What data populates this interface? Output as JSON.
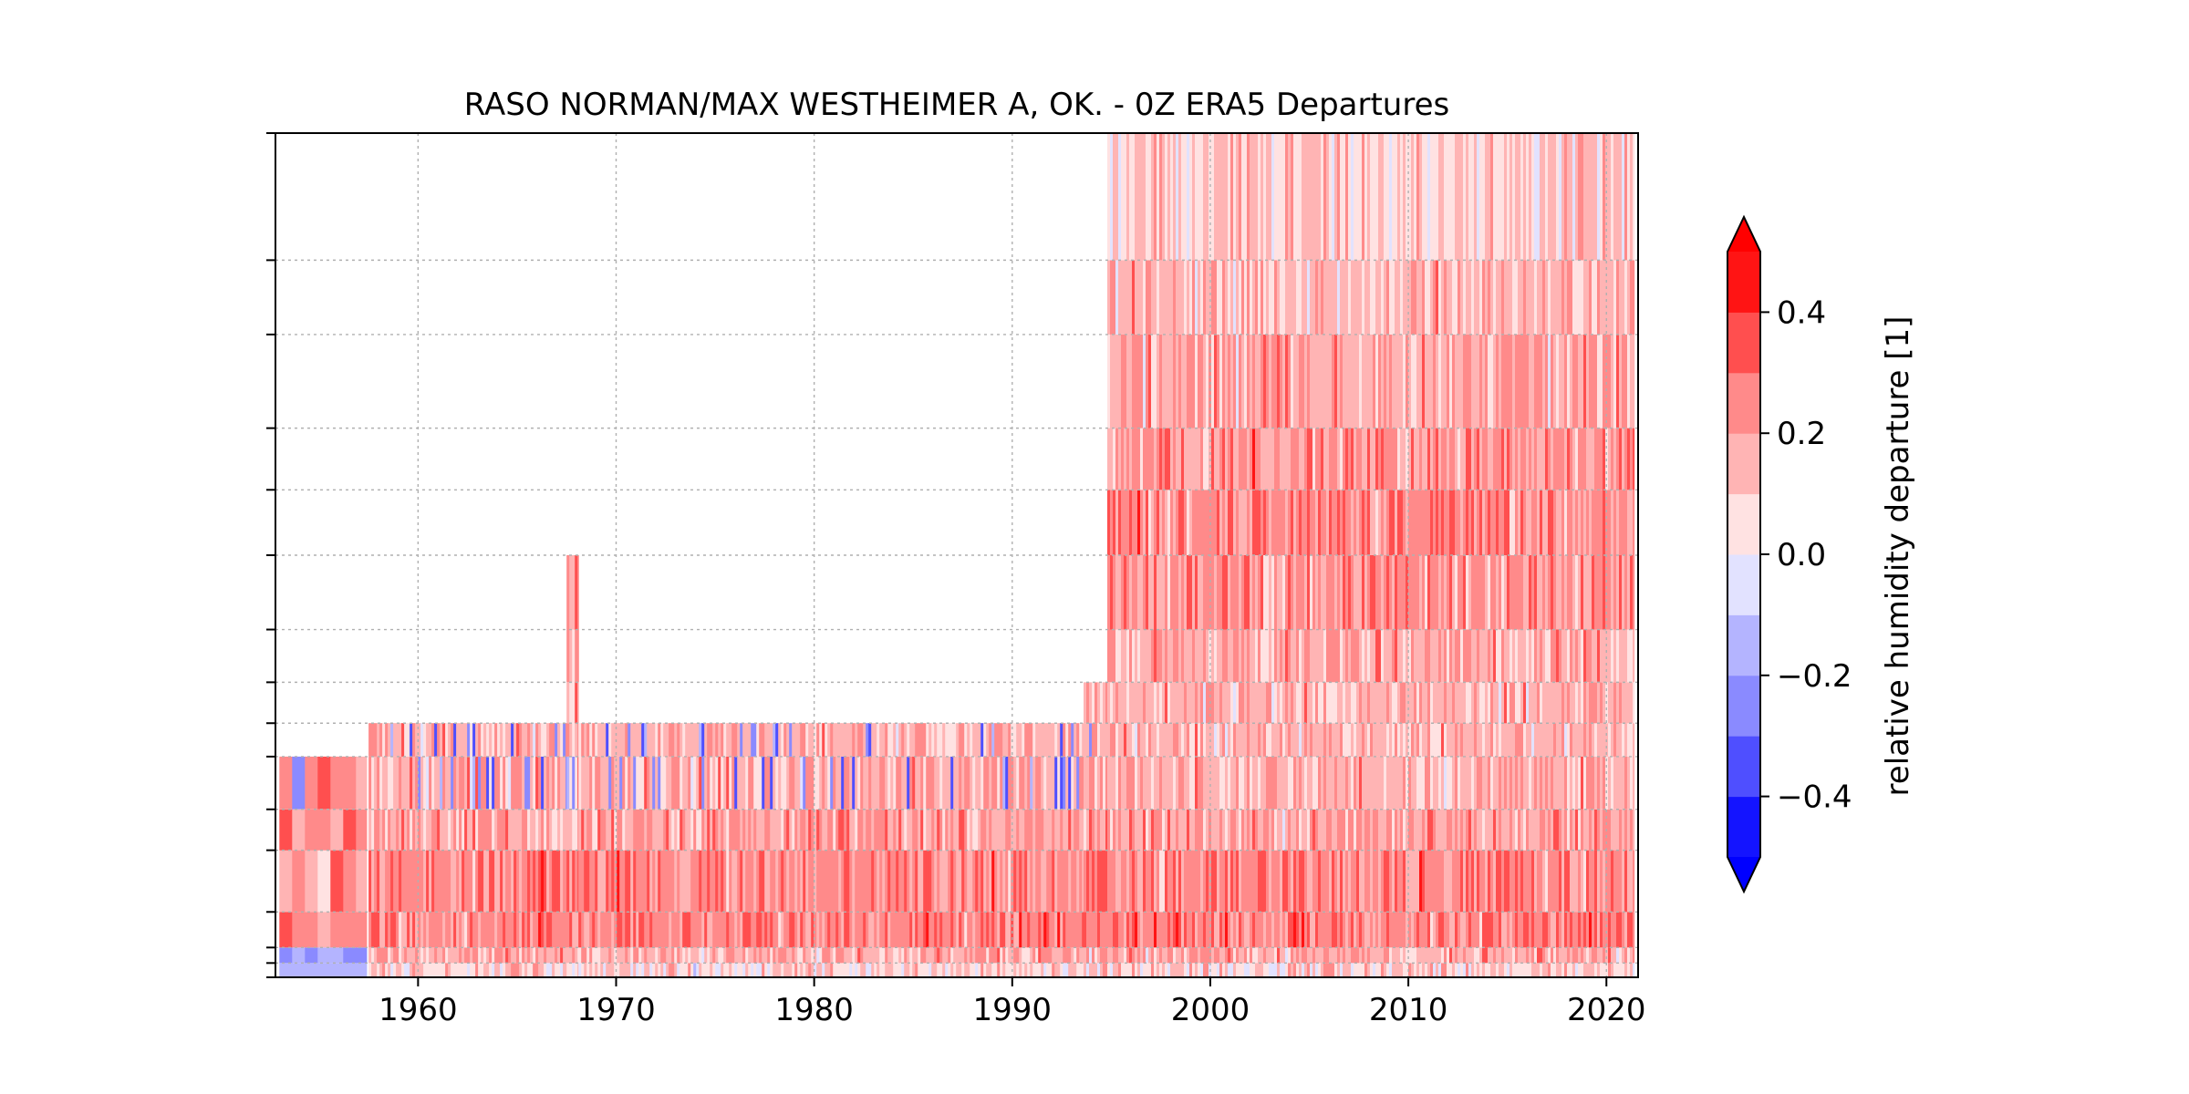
{
  "chart_data": {
    "type": "heatmap",
    "title": "RASO NORMAN/MAX WESTHEIMER A, OK. - 0Z ERA5 Departures",
    "xlabel": "",
    "ylabel": "",
    "xlim": [
      1952.8,
      2021.6
    ],
    "x_ticks": [
      1960,
      1970,
      1980,
      1990,
      2000,
      2010,
      2020
    ],
    "x_tick_labels": [
      "1960",
      "1970",
      "1980",
      "1990",
      "2000",
      "2010",
      "2020"
    ],
    "y_scale": "log",
    "y_inverted": true,
    "ylim": [
      1000,
      10
    ],
    "y_ticks": [
      1000,
      925,
      850,
      700,
      500,
      400,
      300,
      250,
      200,
      150,
      100,
      70,
      50,
      30,
      20,
      10
    ],
    "y_tick_labels": [],
    "grid": true,
    "colorbar": {
      "label": "relative humidity departure [1]",
      "levels": [
        -0.5,
        -0.4,
        -0.3,
        -0.2,
        -0.1,
        0.0,
        0.1,
        0.2,
        0.3,
        0.4,
        0.5
      ],
      "colors": [
        "#1414ff",
        "#4f4fff",
        "#8a8aff",
        "#b4b4ff",
        "#e2e2ff",
        "#ffe2e2",
        "#ffb4b4",
        "#ff8a8a",
        "#ff4f4f",
        "#ff1414"
      ],
      "extend": "both",
      "under_color": "#0000ff",
      "over_color": "#ff0000",
      "tick_values": [
        -0.4,
        -0.2,
        0.0,
        0.2,
        0.4
      ],
      "tick_labels": [
        "−0.4",
        "−0.2",
        "0.0",
        "0.2",
        "0.4"
      ]
    },
    "coverage": [
      {
        "start": 1953.0,
        "end": 1957.4,
        "p_top": 300
      },
      {
        "start": 1957.5,
        "end": 1967.5,
        "p_top": 250
      },
      {
        "start": 1967.5,
        "end": 1968.1,
        "p_top": 100
      },
      {
        "start": 1968.1,
        "end": 1993.6,
        "p_top": 250
      },
      {
        "start": 1993.6,
        "end": 1994.8,
        "p_top": 200
      },
      {
        "start": 1994.8,
        "end": 2021.4,
        "p_top": 10
      }
    ],
    "mean_departure_by_level": [
      {
        "p": 1000,
        "value": 0.05
      },
      {
        "p": 925,
        "value": 0.12
      },
      {
        "p": 850,
        "value": 0.22
      },
      {
        "p": 700,
        "value": 0.3
      },
      {
        "p": 500,
        "value": 0.2
      },
      {
        "p": 400,
        "value": 0.18
      },
      {
        "p": 300,
        "value": 0.15
      },
      {
        "p": 200,
        "value": 0.15
      },
      {
        "p": 100,
        "value": 0.25
      },
      {
        "p": 10,
        "value": 0.08
      }
    ]
  }
}
